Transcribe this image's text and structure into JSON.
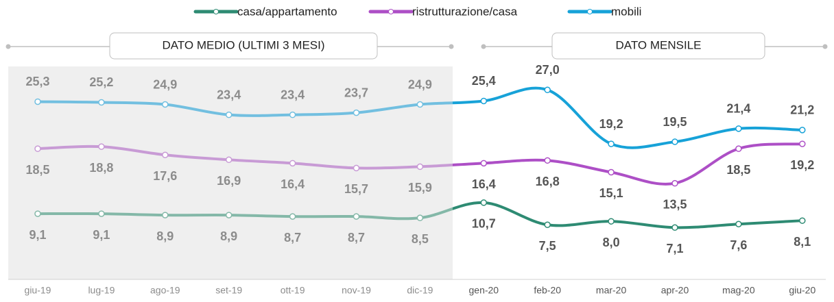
{
  "chart_data": {
    "type": "line",
    "sections": [
      "DATO MEDIO (ULTIMI 3 MESI)",
      "DATO MENSILE"
    ],
    "categories": [
      "giu-19",
      "lug-19",
      "ago-19",
      "set-19",
      "ott-19",
      "nov-19",
      "dic-19",
      "gen-20",
      "feb-20",
      "mar-20",
      "apr-20",
      "mag-20",
      "giu-20"
    ],
    "series": [
      {
        "name": "casa/appartamento",
        "color": "#2e8b73",
        "faded_color": "#84b8a8",
        "label_side": "below",
        "values": [
          9.1,
          9.1,
          8.9,
          8.9,
          8.7,
          8.7,
          8.5,
          10.7,
          7.5,
          8.0,
          7.1,
          7.6,
          8.1
        ],
        "value_labels": [
          "9,1",
          "9,1",
          "8,9",
          "8,9",
          "8,7",
          "8,7",
          "8,5",
          "10,7",
          "7,5",
          "8,0",
          "7,1",
          "7,6",
          "8,1"
        ]
      },
      {
        "name": "ristrutturazione/casa",
        "color": "#ad4fc6",
        "faded_color": "#c89bd5",
        "label_side": "below",
        "values": [
          18.5,
          18.8,
          17.6,
          16.9,
          16.4,
          15.7,
          15.9,
          16.4,
          16.8,
          15.1,
          13.5,
          18.5,
          19.2
        ],
        "value_labels": [
          "18,5",
          "18,8",
          "17,6",
          "16,9",
          "16,4",
          "15,7",
          "15,9",
          "16,4",
          "16,8",
          "15,1",
          "13,5",
          "18,5",
          "19,2"
        ]
      },
      {
        "name": "mobili",
        "color": "#17a2d8",
        "faded_color": "#72bfe0",
        "label_side": "above",
        "values": [
          25.3,
          25.2,
          24.9,
          23.4,
          23.4,
          23.7,
          24.9,
          25.4,
          27.0,
          19.2,
          19.5,
          21.4,
          21.2
        ],
        "value_labels": [
          "25,3",
          "25,2",
          "24,9",
          "23,4",
          "23,4",
          "23,7",
          "24,9",
          "25,4",
          "27,0",
          "19,2",
          "19,5",
          "21,4",
          "21,2"
        ]
      }
    ]
  }
}
